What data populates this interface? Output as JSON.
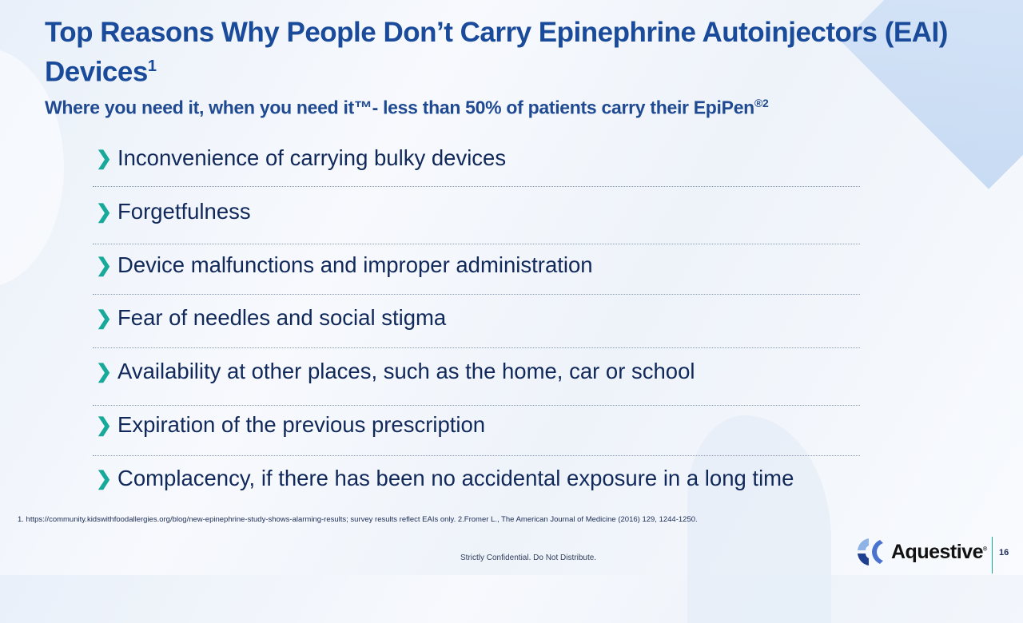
{
  "title": {
    "text": "Top Reasons Why People Don’t Carry Epinephrine Autoinjectors (EAI) Devices",
    "sup": "1"
  },
  "subtitle": {
    "text": "Where you need it, when you need it™- less than 50% of patients carry their EpiPen",
    "sup": "®2"
  },
  "bullet_icon": "chevron-right-icon",
  "colors": {
    "title": "#1a4b9b",
    "bullet": "#17a99a",
    "text": "#10285a"
  },
  "reasons": [
    "Inconvenience of carrying bulky devices",
    "Forgetfulness",
    "Device malfunctions and improper administration",
    "Fear of needles and social stigma",
    "Availability at other places, such as the home, car or school",
    "Expiration of the previous prescription",
    "Complacency, if there has been no accidental exposure in a long time"
  ],
  "footnote": "1. https://community.kidswithfoodallergies.org/blog/new-epinephrine-study-shows-alarming-results; survey results reflect EAIs only.  2.Fromer L., The American Journal of Medicine (2016) 129, 1244-1250.",
  "confidential": "Strictly Confidential. Do Not Distribute.",
  "logo": {
    "text": "Aquestive",
    "mark": "®"
  },
  "page_number": "16"
}
